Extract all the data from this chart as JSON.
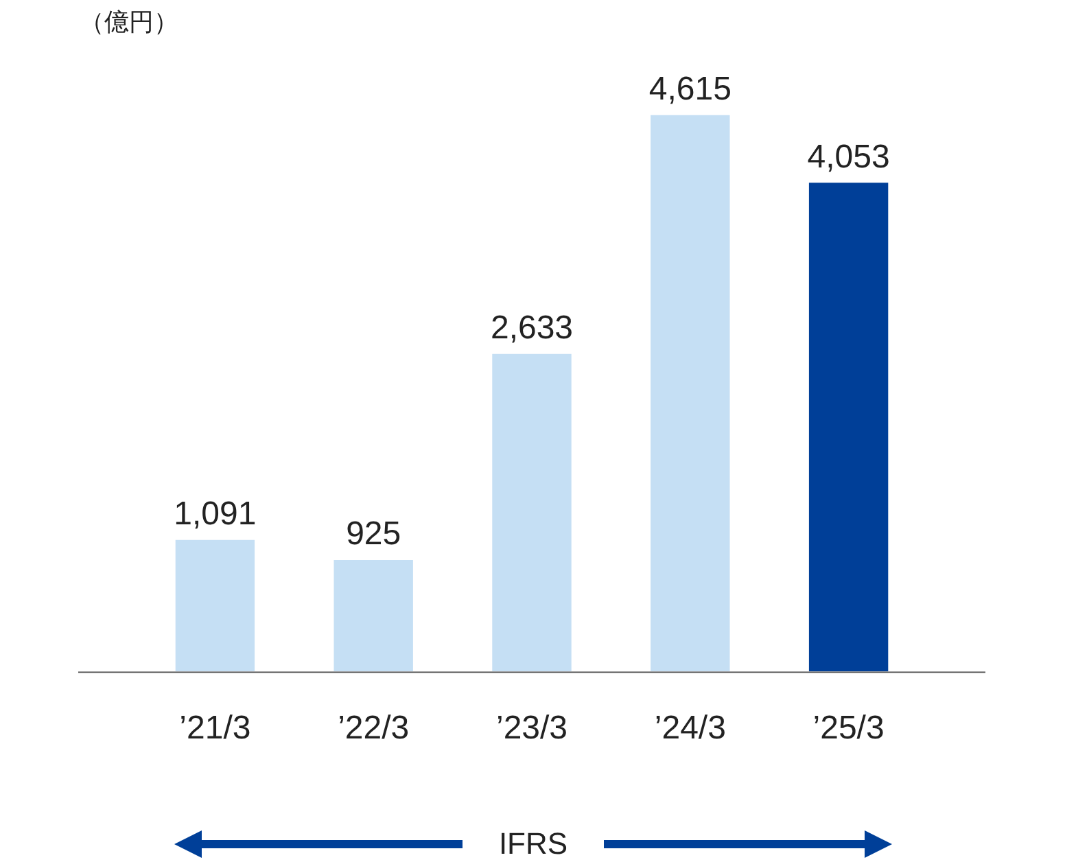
{
  "chart_data": {
    "type": "bar",
    "ylabel": "（億円）",
    "categories": [
      "’21/3",
      "’22/3",
      "’23/3",
      "’24/3",
      "’25/3"
    ],
    "values": [
      1091,
      925,
      2633,
      4615,
      4053
    ],
    "colors": [
      "#c5dff4",
      "#c5dff4",
      "#c5dff4",
      "#c5dff4",
      "#003f98"
    ],
    "value_labels": [
      "1,091",
      "925",
      "2,633",
      "4,615",
      "4,053"
    ],
    "tick_labels": "x",
    "annotations": [
      "IFRS"
    ]
  }
}
